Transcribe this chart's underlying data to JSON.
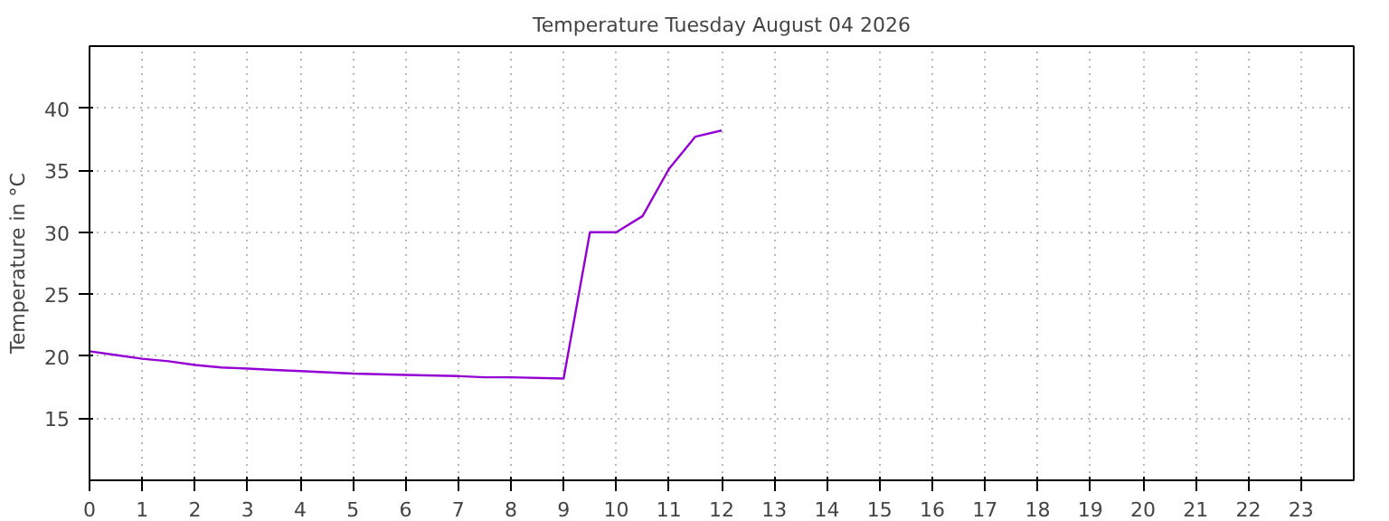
{
  "chart_data": {
    "type": "line",
    "title": "Temperature Tuesday August 04 2026",
    "ylabel": "Temperature in °C",
    "series": [
      {
        "color": "#9400d3",
        "x": [
          0,
          0.5,
          1,
          1.5,
          2,
          2.5,
          3,
          3.5,
          4,
          5,
          6,
          7,
          7.5,
          8,
          9,
          9.5,
          10,
          10.5,
          11,
          11.5,
          12
        ],
        "values": [
          20.4,
          20.1,
          19.8,
          19.6,
          19.3,
          19.1,
          19.0,
          18.9,
          18.8,
          18.6,
          18.5,
          18.4,
          18.3,
          18.3,
          18.2,
          30,
          30,
          31.3,
          35.1,
          37.7,
          38.2
        ]
      }
    ],
    "xlim": [
      0,
      24
    ],
    "xticks": [
      0,
      1,
      2,
      3,
      4,
      5,
      6,
      7,
      8,
      9,
      10,
      11,
      12,
      13,
      14,
      15,
      16,
      17,
      18,
      19,
      20,
      21,
      22,
      23
    ],
    "ylim": [
      10,
      45
    ],
    "yticks": [
      15,
      20,
      25,
      30,
      35,
      40
    ],
    "grid": true,
    "marker": "none",
    "line_style": "solid"
  }
}
